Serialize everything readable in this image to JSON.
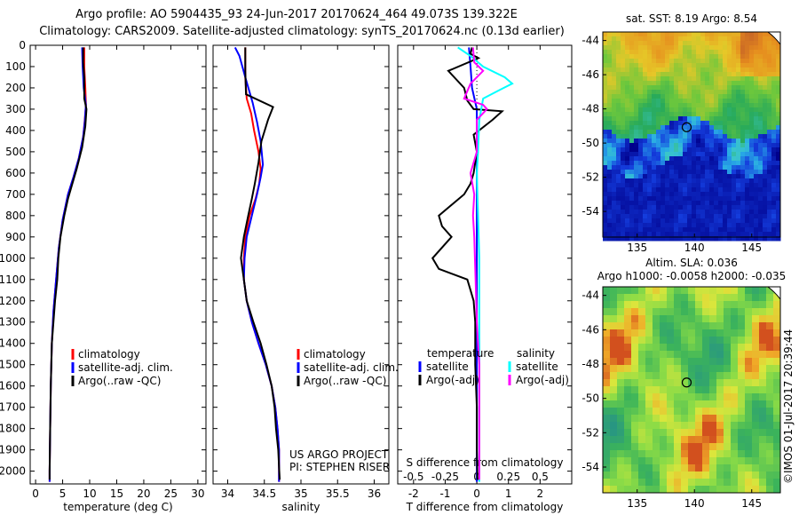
{
  "header": {
    "title_line1": "Argo profile: AO 5904435_93 24-Jun-2017 20170624_464 49.073S 139.322E",
    "title_line2": "Climatology: CARS2009. Satellite-adjusted climatology: synTS_20170624.nc (0.13d earlier)"
  },
  "credit": {
    "line1": "US ARGO PROJECT",
    "line2": "PI: STEPHEN RISER"
  },
  "footer_stamp": "©IMOS 01-Jul-2017 20:39:44",
  "colors": {
    "red": "#ff0000",
    "blue": "#0000ff",
    "black": "#000000",
    "cyan": "#00ffff",
    "magenta": "#ff00ff"
  },
  "chart_data": [
    {
      "type": "line",
      "xlabel": "temperature (deg C)",
      "xlim": [
        -1,
        31.5
      ],
      "xticks": [
        0,
        5,
        10,
        15,
        20,
        25,
        30
      ],
      "ylim": [
        0,
        2060
      ],
      "yticks": [
        0,
        100,
        200,
        300,
        400,
        500,
        600,
        700,
        800,
        900,
        1000,
        1100,
        1200,
        1300,
        1400,
        1500,
        1600,
        1700,
        1800,
        1900,
        2000
      ],
      "legend": {
        "placement": "center-left",
        "entries": [
          "climatology",
          "satellite-adj. clim.",
          "Argo(..raw -QC)"
        ]
      },
      "series": [
        {
          "name": "climatology",
          "color": "red",
          "points": [
            [
              9.0,
              10
            ],
            [
              9.0,
              100
            ],
            [
              9.2,
              200
            ],
            [
              9.3,
              280
            ],
            [
              9.1,
              350
            ],
            [
              8.8,
              430
            ],
            [
              8.0,
              530
            ],
            [
              7.0,
              620
            ],
            [
              6.0,
              700
            ],
            [
              5.0,
              820
            ],
            [
              4.3,
              950
            ],
            [
              3.8,
              1100
            ],
            [
              3.3,
              1250
            ],
            [
              3.0,
              1400
            ],
            [
              2.8,
              1600
            ],
            [
              2.7,
              1800
            ],
            [
              2.6,
              2000
            ],
            [
              2.6,
              2050
            ]
          ]
        },
        {
          "name": "satellite-adj. clim.",
          "color": "blue",
          "points": [
            [
              8.6,
              10
            ],
            [
              8.7,
              100
            ],
            [
              8.9,
              200
            ],
            [
              9.3,
              280
            ],
            [
              9.1,
              360
            ],
            [
              8.8,
              430
            ],
            [
              8.0,
              530
            ],
            [
              7.0,
              620
            ],
            [
              6.0,
              700
            ],
            [
              5.0,
              820
            ],
            [
              4.3,
              950
            ],
            [
              3.8,
              1100
            ],
            [
              3.3,
              1250
            ],
            [
              3.0,
              1400
            ],
            [
              2.8,
              1600
            ],
            [
              2.7,
              1800
            ],
            [
              2.6,
              2000
            ],
            [
              2.6,
              2050
            ]
          ]
        },
        {
          "name": "Argo(..raw -QC)",
          "color": "black",
          "points": [
            [
              8.8,
              10
            ],
            [
              8.8,
              80
            ],
            [
              9.0,
              150
            ],
            [
              9.0,
              250
            ],
            [
              9.4,
              300
            ],
            [
              9.2,
              380
            ],
            [
              8.6,
              480
            ],
            [
              7.6,
              580
            ],
            [
              6.8,
              650
            ],
            [
              6.0,
              720
            ],
            [
              5.3,
              800
            ],
            [
              4.6,
              900
            ],
            [
              4.2,
              1000
            ],
            [
              4.0,
              1100
            ],
            [
              3.6,
              1200
            ],
            [
              3.3,
              1300
            ],
            [
              3.0,
              1400
            ],
            [
              2.8,
              1600
            ],
            [
              2.7,
              1800
            ],
            [
              2.6,
              2000
            ],
            [
              2.6,
              2040
            ]
          ]
        }
      ]
    },
    {
      "type": "line",
      "xlabel": "salinity",
      "xlim": [
        33.8,
        36.2
      ],
      "xticks": [
        34,
        34.5,
        35,
        35.5,
        36
      ],
      "ylim": [
        0,
        2060
      ],
      "legend": {
        "placement": "center-left",
        "entries": [
          "climatology",
          "satellite-adj. clim.",
          "Argo(..raw -QC)"
        ]
      },
      "series": [
        {
          "name": "climatology",
          "color": "red",
          "points": [
            [
              34.24,
              10
            ],
            [
              34.24,
              150
            ],
            [
              34.26,
              250
            ],
            [
              34.32,
              320
            ],
            [
              34.36,
              400
            ],
            [
              34.42,
              500
            ],
            [
              34.45,
              580
            ],
            [
              34.43,
              650
            ],
            [
              34.38,
              720
            ],
            [
              34.3,
              800
            ],
            [
              34.24,
              900
            ],
            [
              34.22,
              1000
            ],
            [
              34.22,
              1100
            ],
            [
              34.26,
              1200
            ],
            [
              34.33,
              1300
            ],
            [
              34.42,
              1400
            ],
            [
              34.52,
              1500
            ],
            [
              34.6,
              1600
            ],
            [
              34.65,
              1700
            ],
            [
              34.68,
              1800
            ],
            [
              34.7,
              1900
            ],
            [
              34.7,
              2000
            ],
            [
              34.7,
              2050
            ]
          ]
        },
        {
          "name": "satellite-adj. clim.",
          "color": "blue",
          "points": [
            [
              34.1,
              10
            ],
            [
              34.16,
              50
            ],
            [
              34.24,
              150
            ],
            [
              34.34,
              270
            ],
            [
              34.4,
              360
            ],
            [
              34.45,
              450
            ],
            [
              34.48,
              560
            ],
            [
              34.45,
              620
            ],
            [
              34.4,
              700
            ],
            [
              34.33,
              800
            ],
            [
              34.26,
              900
            ],
            [
              34.23,
              1000
            ],
            [
              34.22,
              1100
            ],
            [
              34.26,
              1200
            ],
            [
              34.33,
              1300
            ],
            [
              34.42,
              1400
            ],
            [
              34.52,
              1500
            ],
            [
              34.6,
              1600
            ],
            [
              34.65,
              1700
            ],
            [
              34.68,
              1800
            ],
            [
              34.7,
              1900
            ],
            [
              34.7,
              2000
            ],
            [
              34.7,
              2050
            ]
          ]
        },
        {
          "name": "Argo(..raw -QC)",
          "color": "black",
          "points": [
            [
              34.24,
              10
            ],
            [
              34.24,
              120
            ],
            [
              34.25,
              230
            ],
            [
              34.62,
              290
            ],
            [
              34.55,
              350
            ],
            [
              34.46,
              450
            ],
            [
              34.42,
              550
            ],
            [
              34.37,
              650
            ],
            [
              34.33,
              720
            ],
            [
              34.28,
              800
            ],
            [
              34.22,
              900
            ],
            [
              34.18,
              1000
            ],
            [
              34.22,
              1100
            ],
            [
              34.26,
              1200
            ],
            [
              34.35,
              1300
            ],
            [
              34.45,
              1400
            ],
            [
              34.53,
              1500
            ],
            [
              34.6,
              1600
            ],
            [
              34.64,
              1700
            ],
            [
              34.66,
              1800
            ],
            [
              34.69,
              1900
            ],
            [
              34.7,
              1980
            ],
            [
              34.71,
              2040
            ]
          ]
        }
      ]
    },
    {
      "type": "line",
      "xlabel": "T difference from climatology",
      "x2label": "S difference from climatology",
      "xlim": [
        -2.5,
        3.0
      ],
      "xticks": [
        -2,
        -1,
        0,
        1,
        2
      ],
      "x2lim": [
        -0.625,
        0.75
      ],
      "x2ticks": [
        -0.5,
        -0.25,
        0,
        0.25,
        0.5
      ],
      "x2ticklabels": [
        "-0.5",
        "-0.25",
        "0",
        "0.25",
        "0.5"
      ],
      "ylim": [
        0,
        2060
      ],
      "legend": {
        "placement": "bottom",
        "group_titles": [
          "temperature",
          "salinity"
        ],
        "entries": [
          "satellite",
          "Argo(-adj)",
          "satellite",
          "Argo(-adj)"
        ]
      },
      "series": [
        {
          "name": "satellite",
          "group": "temperature",
          "color": "blue",
          "points": [
            [
              -0.25,
              10
            ],
            [
              -0.2,
              100
            ],
            [
              -0.15,
              200
            ],
            [
              0.0,
              300
            ],
            [
              0.0,
              2050
            ]
          ]
        },
        {
          "name": "Argo(-adj)",
          "group": "temperature",
          "color": "black",
          "points": [
            [
              -0.15,
              10
            ],
            [
              -0.2,
              40
            ],
            [
              0.05,
              60
            ],
            [
              -0.9,
              120
            ],
            [
              -0.4,
              200
            ],
            [
              -0.3,
              260
            ],
            [
              -0.1,
              300
            ],
            [
              0.8,
              310
            ],
            [
              0.5,
              350
            ],
            [
              -0.1,
              420
            ],
            [
              0.0,
              500
            ],
            [
              -0.1,
              600
            ],
            [
              -0.2,
              650
            ],
            [
              -0.4,
              700
            ],
            [
              -1.2,
              800
            ],
            [
              -1.1,
              850
            ],
            [
              -0.8,
              900
            ],
            [
              -1.4,
              1000
            ],
            [
              -1.2,
              1050
            ],
            [
              -0.3,
              1100
            ],
            [
              -0.2,
              1150
            ],
            [
              -0.1,
              1200
            ],
            [
              -0.05,
              1300
            ],
            [
              -0.05,
              1500
            ],
            [
              0.0,
              1700
            ],
            [
              0.0,
              1900
            ],
            [
              0.02,
              2040
            ]
          ]
        },
        {
          "name": "satellite",
          "group": "salinity",
          "color": "cyan",
          "points": [
            [
              -0.15,
              10
            ],
            [
              -0.05,
              50
            ],
            [
              0.05,
              100
            ],
            [
              0.22,
              150
            ],
            [
              0.28,
              180
            ],
            [
              0.18,
              210
            ],
            [
              0.05,
              250
            ],
            [
              0.02,
              350
            ],
            [
              0.01,
              500
            ],
            [
              0.0,
              600
            ],
            [
              0.01,
              800
            ],
            [
              0.02,
              1000
            ],
            [
              0.02,
              1400
            ],
            [
              0.02,
              1800
            ],
            [
              0.02,
              2050
            ]
          ]
        },
        {
          "name": "Argo(-adj)",
          "group": "salinity",
          "color": "magenta",
          "points": [
            [
              -0.03,
              10
            ],
            [
              -0.02,
              80
            ],
            [
              0.05,
              120
            ],
            [
              -0.05,
              180
            ],
            [
              -0.1,
              250
            ],
            [
              0.05,
              280
            ],
            [
              0.08,
              300
            ],
            [
              0.0,
              350
            ],
            [
              0.0,
              500
            ],
            [
              -0.05,
              600
            ],
            [
              -0.02,
              700
            ],
            [
              -0.03,
              800
            ],
            [
              -0.02,
              900
            ],
            [
              -0.01,
              1100
            ],
            [
              0.0,
              1300
            ],
            [
              0.02,
              1500
            ],
            [
              0.02,
              1700
            ],
            [
              0.02,
              1900
            ],
            [
              0.02,
              2040
            ]
          ]
        }
      ]
    },
    {
      "type": "heatmap",
      "title": "sat. SST: 8.19 Argo: 8.54",
      "xlim": [
        132,
        147.5
      ],
      "xticks": [
        135,
        140,
        145
      ],
      "ylim": [
        -55.5,
        -43.5
      ],
      "yticks": [
        -44,
        -46,
        -48,
        -50,
        -52,
        -54
      ],
      "marker": {
        "lon": 139.322,
        "lat": -49.073
      }
    },
    {
      "type": "heatmap",
      "title_line1": "Altim. SLA: 0.036",
      "title_line2": "Argo h1000: -0.0058 h2000: -0.035",
      "xlim": [
        132,
        147.5
      ],
      "xticks": [
        135,
        140,
        145
      ],
      "ylim": [
        -55.5,
        -43.5
      ],
      "yticks": [
        -44,
        -46,
        -48,
        -50,
        -52,
        -54
      ],
      "marker": {
        "lon": 139.322,
        "lat": -49.073
      }
    }
  ]
}
